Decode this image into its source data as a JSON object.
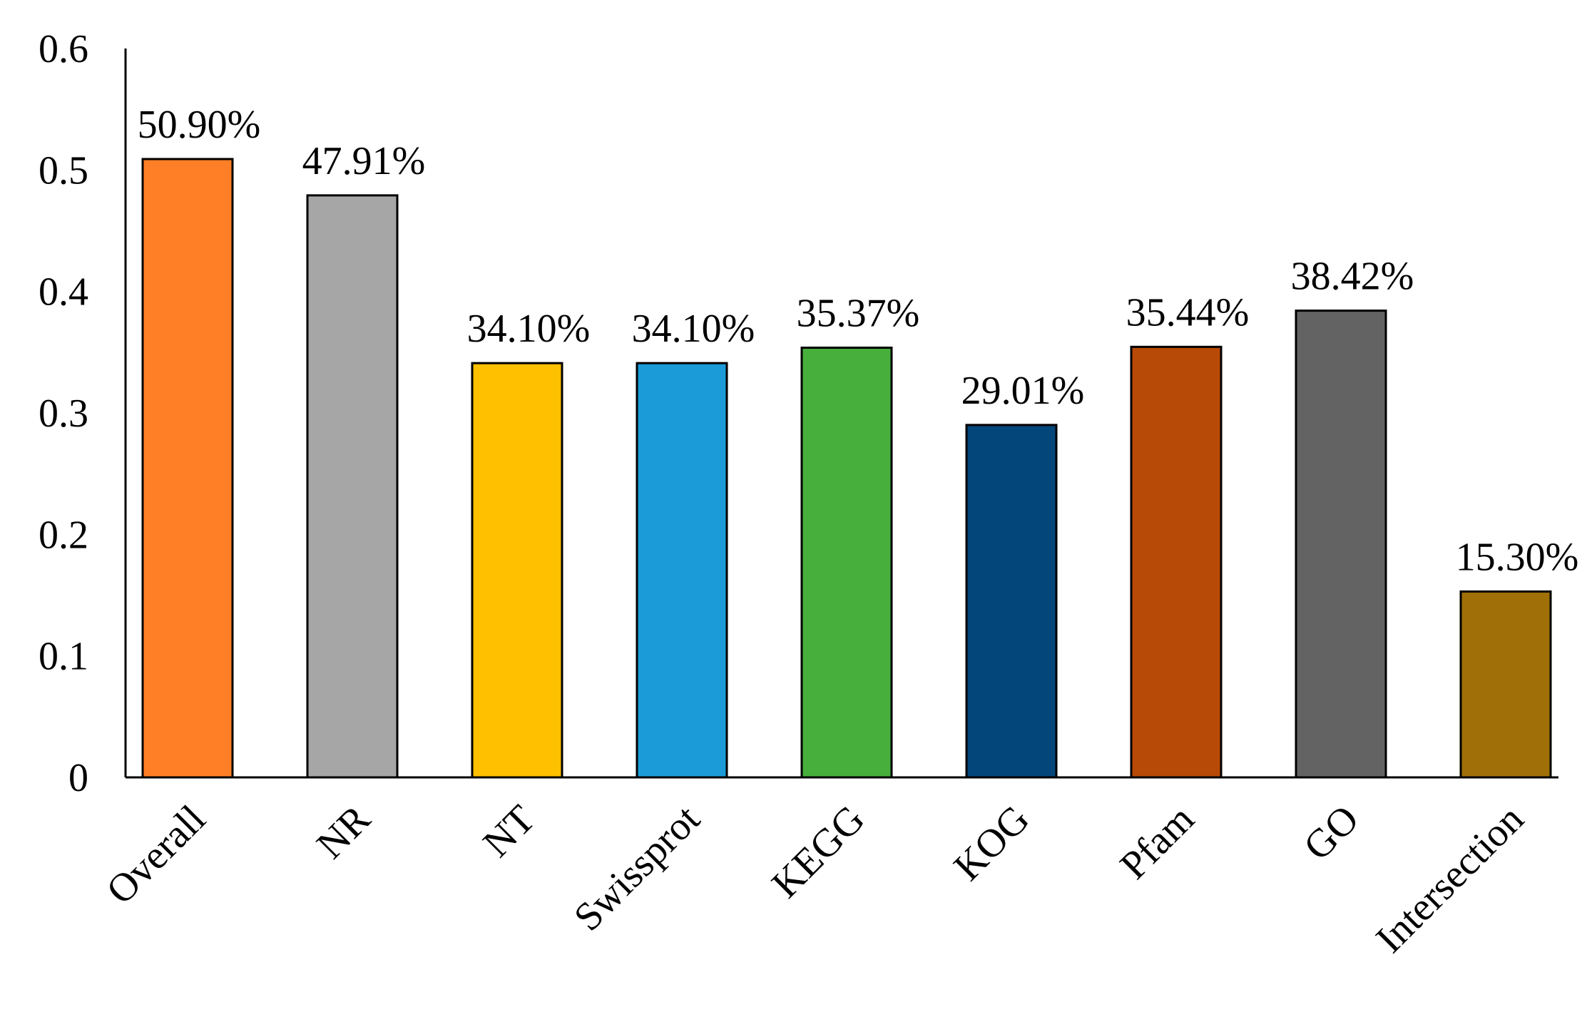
{
  "chart_data": {
    "type": "bar",
    "title": "",
    "xlabel": "",
    "ylabel": "",
    "ylim": [
      0,
      0.6
    ],
    "yticks": [
      "0",
      "0.1",
      "0.2",
      "0.3",
      "0.4",
      "0.5",
      "0.6"
    ],
    "categories": [
      "Overall",
      "NR",
      "NT",
      "Swissprot",
      "KEGG",
      "KOG",
      "Pfam",
      "GO",
      "Intersection"
    ],
    "values": [
      0.509,
      0.4791,
      0.341,
      0.341,
      0.3537,
      0.2901,
      0.3544,
      0.3842,
      0.153
    ],
    "data_labels": [
      "50.90%",
      "47.91%",
      "34.10%",
      "34.10%",
      "35.37%",
      "29.01%",
      "35.44%",
      "38.42%",
      "15.30%"
    ],
    "colors": [
      "#FF7F27",
      "#A6A6A6",
      "#FFC000",
      "#1B9CD8",
      "#47AF3C",
      "#03467A",
      "#B74A06",
      "#636363",
      "#A06F08"
    ],
    "grid": false,
    "legend": "none"
  }
}
